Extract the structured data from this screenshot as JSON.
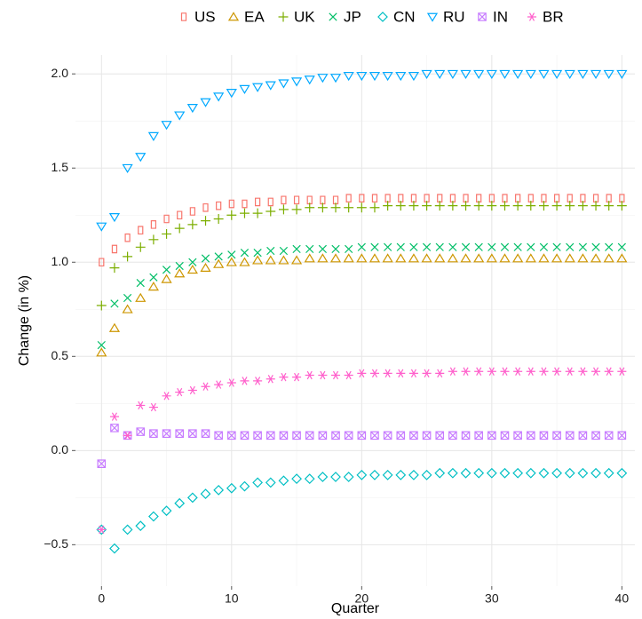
{
  "chart_data": {
    "type": "scatter",
    "x_label": "Quarter",
    "y_label": "Change (in %)",
    "x": [
      0,
      1,
      2,
      3,
      4,
      5,
      6,
      7,
      8,
      9,
      10,
      11,
      12,
      13,
      14,
      15,
      16,
      17,
      18,
      19,
      20,
      21,
      22,
      23,
      24,
      25,
      26,
      27,
      28,
      29,
      30,
      31,
      32,
      33,
      34,
      35,
      36,
      37,
      38,
      39,
      40
    ],
    "xlim": [
      -2,
      41
    ],
    "ylim": [
      -0.72,
      2.1
    ],
    "xticks": [
      0,
      10,
      20,
      30,
      40
    ],
    "yticks": [
      {
        "value": -0.5,
        "label": "−0.5"
      },
      {
        "value": 0,
        "label": "0.0"
      },
      0.5,
      {
        "value": 1,
        "label": "1.0"
      },
      1.5,
      {
        "value": 2,
        "label": "2.0"
      }
    ],
    "grid": true,
    "legend": "top",
    "series": [
      {
        "name": "US",
        "color": "#F8766D",
        "marker": "square",
        "values": [
          1.0,
          1.07,
          1.13,
          1.17,
          1.2,
          1.23,
          1.25,
          1.27,
          1.29,
          1.3,
          1.31,
          1.31,
          1.32,
          1.32,
          1.33,
          1.33,
          1.33,
          1.33,
          1.33,
          1.34,
          1.34,
          1.34,
          1.34,
          1.34,
          1.34,
          1.34,
          1.34,
          1.34,
          1.34,
          1.34,
          1.34,
          1.34,
          1.34,
          1.34,
          1.34,
          1.34,
          1.34,
          1.34,
          1.34,
          1.34,
          1.34
        ]
      },
      {
        "name": "EA",
        "color": "#CD9600",
        "marker": "triangle",
        "values": [
          0.52,
          0.65,
          0.75,
          0.81,
          0.87,
          0.91,
          0.94,
          0.96,
          0.97,
          0.99,
          1.0,
          1.0,
          1.01,
          1.01,
          1.01,
          1.01,
          1.02,
          1.02,
          1.02,
          1.02,
          1.02,
          1.02,
          1.02,
          1.02,
          1.02,
          1.02,
          1.02,
          1.02,
          1.02,
          1.02,
          1.02,
          1.02,
          1.02,
          1.02,
          1.02,
          1.02,
          1.02,
          1.02,
          1.02,
          1.02,
          1.02
        ]
      },
      {
        "name": "UK",
        "color": "#7CAE00",
        "marker": "plus",
        "values": [
          0.77,
          0.97,
          1.03,
          1.08,
          1.12,
          1.15,
          1.18,
          1.2,
          1.22,
          1.23,
          1.25,
          1.26,
          1.26,
          1.27,
          1.28,
          1.28,
          1.29,
          1.29,
          1.29,
          1.29,
          1.29,
          1.29,
          1.3,
          1.3,
          1.3,
          1.3,
          1.3,
          1.3,
          1.3,
          1.3,
          1.3,
          1.3,
          1.3,
          1.3,
          1.3,
          1.3,
          1.3,
          1.3,
          1.3,
          1.3,
          1.3
        ]
      },
      {
        "name": "JP",
        "color": "#00BE67",
        "marker": "cross",
        "values": [
          0.56,
          0.78,
          0.81,
          0.89,
          0.92,
          0.96,
          0.98,
          1.0,
          1.02,
          1.03,
          1.04,
          1.05,
          1.05,
          1.06,
          1.06,
          1.07,
          1.07,
          1.07,
          1.07,
          1.07,
          1.08,
          1.08,
          1.08,
          1.08,
          1.08,
          1.08,
          1.08,
          1.08,
          1.08,
          1.08,
          1.08,
          1.08,
          1.08,
          1.08,
          1.08,
          1.08,
          1.08,
          1.08,
          1.08,
          1.08,
          1.08
        ]
      },
      {
        "name": "CN",
        "color": "#00BFC4",
        "marker": "diamond",
        "values": [
          -0.42,
          -0.52,
          -0.42,
          -0.4,
          -0.35,
          -0.32,
          -0.28,
          -0.25,
          -0.23,
          -0.21,
          -0.2,
          -0.19,
          -0.17,
          -0.17,
          -0.16,
          -0.15,
          -0.15,
          -0.14,
          -0.14,
          -0.14,
          -0.13,
          -0.13,
          -0.13,
          -0.13,
          -0.13,
          -0.13,
          -0.12,
          -0.12,
          -0.12,
          -0.12,
          -0.12,
          -0.12,
          -0.12,
          -0.12,
          -0.12,
          -0.12,
          -0.12,
          -0.12,
          -0.12,
          -0.12,
          -0.12
        ]
      },
      {
        "name": "RU",
        "color": "#00A9FF",
        "marker": "triangle-down",
        "values": [
          1.19,
          1.24,
          1.5,
          1.56,
          1.67,
          1.73,
          1.78,
          1.82,
          1.85,
          1.88,
          1.9,
          1.92,
          1.93,
          1.94,
          1.95,
          1.96,
          1.97,
          1.98,
          1.98,
          1.99,
          1.99,
          1.99,
          1.99,
          1.99,
          1.99,
          2.0,
          2.0,
          2.0,
          2.0,
          2.0,
          2.0,
          2.0,
          2.0,
          2.0,
          2.0,
          2.0,
          2.0,
          2.0,
          2.0,
          2.0,
          2.0
        ]
      },
      {
        "name": "IN",
        "color": "#C77CFF",
        "marker": "square-x",
        "values": [
          -0.07,
          0.12,
          0.08,
          0.1,
          0.09,
          0.09,
          0.09,
          0.09,
          0.09,
          0.08,
          0.08,
          0.08,
          0.08,
          0.08,
          0.08,
          0.08,
          0.08,
          0.08,
          0.08,
          0.08,
          0.08,
          0.08,
          0.08,
          0.08,
          0.08,
          0.08,
          0.08,
          0.08,
          0.08,
          0.08,
          0.08,
          0.08,
          0.08,
          0.08,
          0.08,
          0.08,
          0.08,
          0.08,
          0.08,
          0.08,
          0.08
        ]
      },
      {
        "name": "BR",
        "color": "#FF61CC",
        "marker": "asterisk",
        "values": [
          -0.42,
          0.18,
          0.08,
          0.24,
          0.23,
          0.29,
          0.31,
          0.32,
          0.34,
          0.35,
          0.36,
          0.37,
          0.37,
          0.38,
          0.39,
          0.39,
          0.4,
          0.4,
          0.4,
          0.4,
          0.41,
          0.41,
          0.41,
          0.41,
          0.41,
          0.41,
          0.41,
          0.42,
          0.42,
          0.42,
          0.42,
          0.42,
          0.42,
          0.42,
          0.42,
          0.42,
          0.42,
          0.42,
          0.42,
          0.42,
          0.42
        ]
      }
    ]
  }
}
